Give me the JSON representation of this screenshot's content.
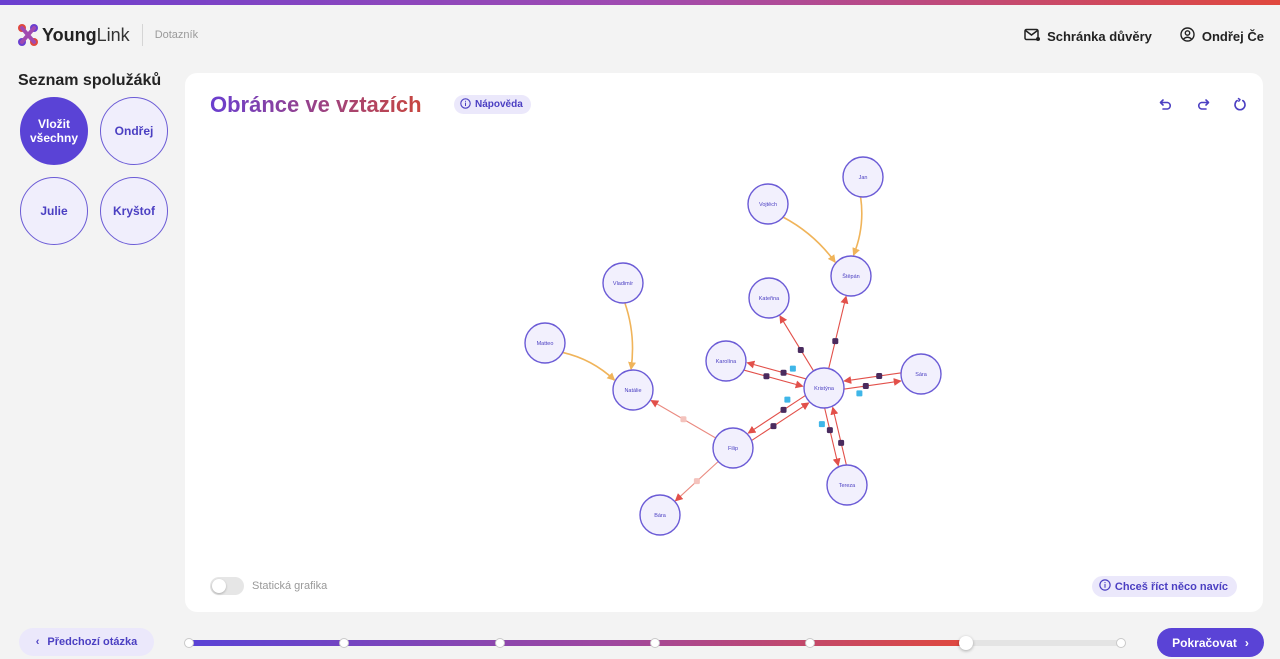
{
  "header": {
    "logo_bold": "Young",
    "logo_light": "Link",
    "section": "Dotazník",
    "inbox_label": "Schránka důvěry",
    "user_label": "Ondřej Če"
  },
  "sidebar": {
    "title": "Seznam spolužáků",
    "chips": [
      "Vložit všechny",
      "Ondřej",
      "Julie",
      "Kryštof"
    ]
  },
  "main": {
    "title": "Obránce ve vztazích",
    "help_label": "Nápověda",
    "toggle_label": "Statická grafika",
    "toggle_on": false,
    "extra_label": "Chceš říct něco navíc",
    "tools": [
      "undo-icon",
      "redo-icon",
      "reset-icon"
    ]
  },
  "graph": {
    "nodes": [
      "Jan",
      "Vojtěch",
      "Štěpán",
      "Vladimír",
      "Kateřina",
      "Matteo",
      "Karolína",
      "Natálie",
      "Kristýna",
      "Sára",
      "Filip",
      "Tereza",
      "Bára"
    ],
    "edges": [
      {
        "from": "Vojtěch",
        "to": "Štěpán",
        "type": "orange"
      },
      {
        "from": "Jan",
        "to": "Štěpán",
        "type": "orange"
      },
      {
        "from": "Vladimír",
        "to": "Natálie",
        "type": "orange"
      },
      {
        "from": "Matteo",
        "to": "Natálie",
        "type": "orange"
      },
      {
        "from": "Kristýna",
        "to": "Štěpán",
        "type": "red"
      },
      {
        "from": "Kristýna",
        "to": "Kateřina",
        "type": "red"
      },
      {
        "from": "Kristýna",
        "to": "Karolína",
        "type": "red"
      },
      {
        "from": "Karolína",
        "to": "Kristýna",
        "type": "red"
      },
      {
        "from": "Kristýna",
        "to": "Sára",
        "type": "red"
      },
      {
        "from": "Sára",
        "to": "Kristýna",
        "type": "red"
      },
      {
        "from": "Kristýna",
        "to": "Filip",
        "type": "red"
      },
      {
        "from": "Filip",
        "to": "Kristýna",
        "type": "red"
      },
      {
        "from": "Kristýna",
        "to": "Tereza",
        "type": "red"
      },
      {
        "from": "Tereza",
        "to": "Kristýna",
        "type": "red"
      },
      {
        "from": "Filip",
        "to": "Natálie",
        "type": "red-light"
      },
      {
        "from": "Filip",
        "to": "Bára",
        "type": "red-light"
      }
    ]
  },
  "footer": {
    "prev_label": "Předchozí otázka",
    "next_label": "Pokračovat",
    "progress_steps": 7,
    "progress_current": 6
  },
  "colors": {
    "accent": "#5a43d6",
    "gradient_start": "#6a3fd0",
    "gradient_end": "#e0483e",
    "edge_red": "#e2504a",
    "edge_orange": "#f0b45a"
  }
}
